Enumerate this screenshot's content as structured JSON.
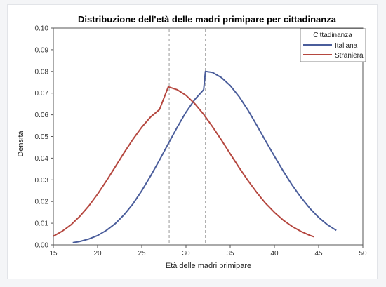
{
  "chart_data": {
    "type": "line",
    "title": "Distribuzione dell'età delle madri primipare per cittadinanza",
    "xlabel": "Età delle madri primipare",
    "ylabel": "Densità",
    "xlim": [
      15,
      50
    ],
    "ylim": [
      0,
      0.1
    ],
    "x_ticks": [
      "15",
      "20",
      "25",
      "30",
      "35",
      "40",
      "45",
      "50"
    ],
    "y_ticks": [
      "0.00",
      "0.01",
      "0.02",
      "0.03",
      "0.04",
      "0.05",
      "0.06",
      "0.07",
      "0.08",
      "0.09",
      "0.10"
    ],
    "legend": {
      "title": "Cittadinanza",
      "placement": "top-right"
    },
    "series": [
      {
        "name": "Italiana",
        "color": "#4a5d9b",
        "x": [
          17.2,
          18,
          19,
          20,
          21,
          22,
          23,
          24,
          25,
          26,
          27,
          28,
          29,
          30,
          31,
          32,
          32.2,
          33,
          34,
          35,
          36,
          37,
          38,
          39,
          40,
          41,
          42,
          43,
          44,
          45,
          46,
          47
        ],
        "y": [
          0.001,
          0.0016,
          0.0027,
          0.0043,
          0.0067,
          0.0098,
          0.0139,
          0.0189,
          0.025,
          0.0318,
          0.0391,
          0.0467,
          0.0542,
          0.0612,
          0.0671,
          0.0716,
          0.08,
          0.0795,
          0.0772,
          0.0735,
          0.0684,
          0.0622,
          0.0552,
          0.048,
          0.0409,
          0.034,
          0.0276,
          0.0219,
          0.0169,
          0.0127,
          0.0093,
          0.0067
        ]
      },
      {
        "name": "Straniera",
        "color": "#b5473f",
        "x": [
          15,
          16,
          17,
          18,
          19,
          20,
          21,
          22,
          23,
          24,
          25,
          26,
          27,
          28,
          29,
          30,
          31,
          32,
          33,
          34,
          35,
          36,
          37,
          38,
          39,
          40,
          41,
          42,
          43,
          44,
          44.5
        ],
        "y": [
          0.004,
          0.0063,
          0.0093,
          0.0132,
          0.0179,
          0.0234,
          0.0295,
          0.036,
          0.0425,
          0.0487,
          0.0543,
          0.059,
          0.0624,
          0.0729,
          0.0716,
          0.069,
          0.0651,
          0.0602,
          0.0545,
          0.0484,
          0.042,
          0.0357,
          0.0297,
          0.0242,
          0.0192,
          0.015,
          0.0114,
          0.0085,
          0.0062,
          0.0044,
          0.0037
        ]
      }
    ],
    "reference_lines": [
      {
        "series": "Straniera",
        "x": 28.1
      },
      {
        "series": "Italiana",
        "x": 32.2
      }
    ]
  }
}
